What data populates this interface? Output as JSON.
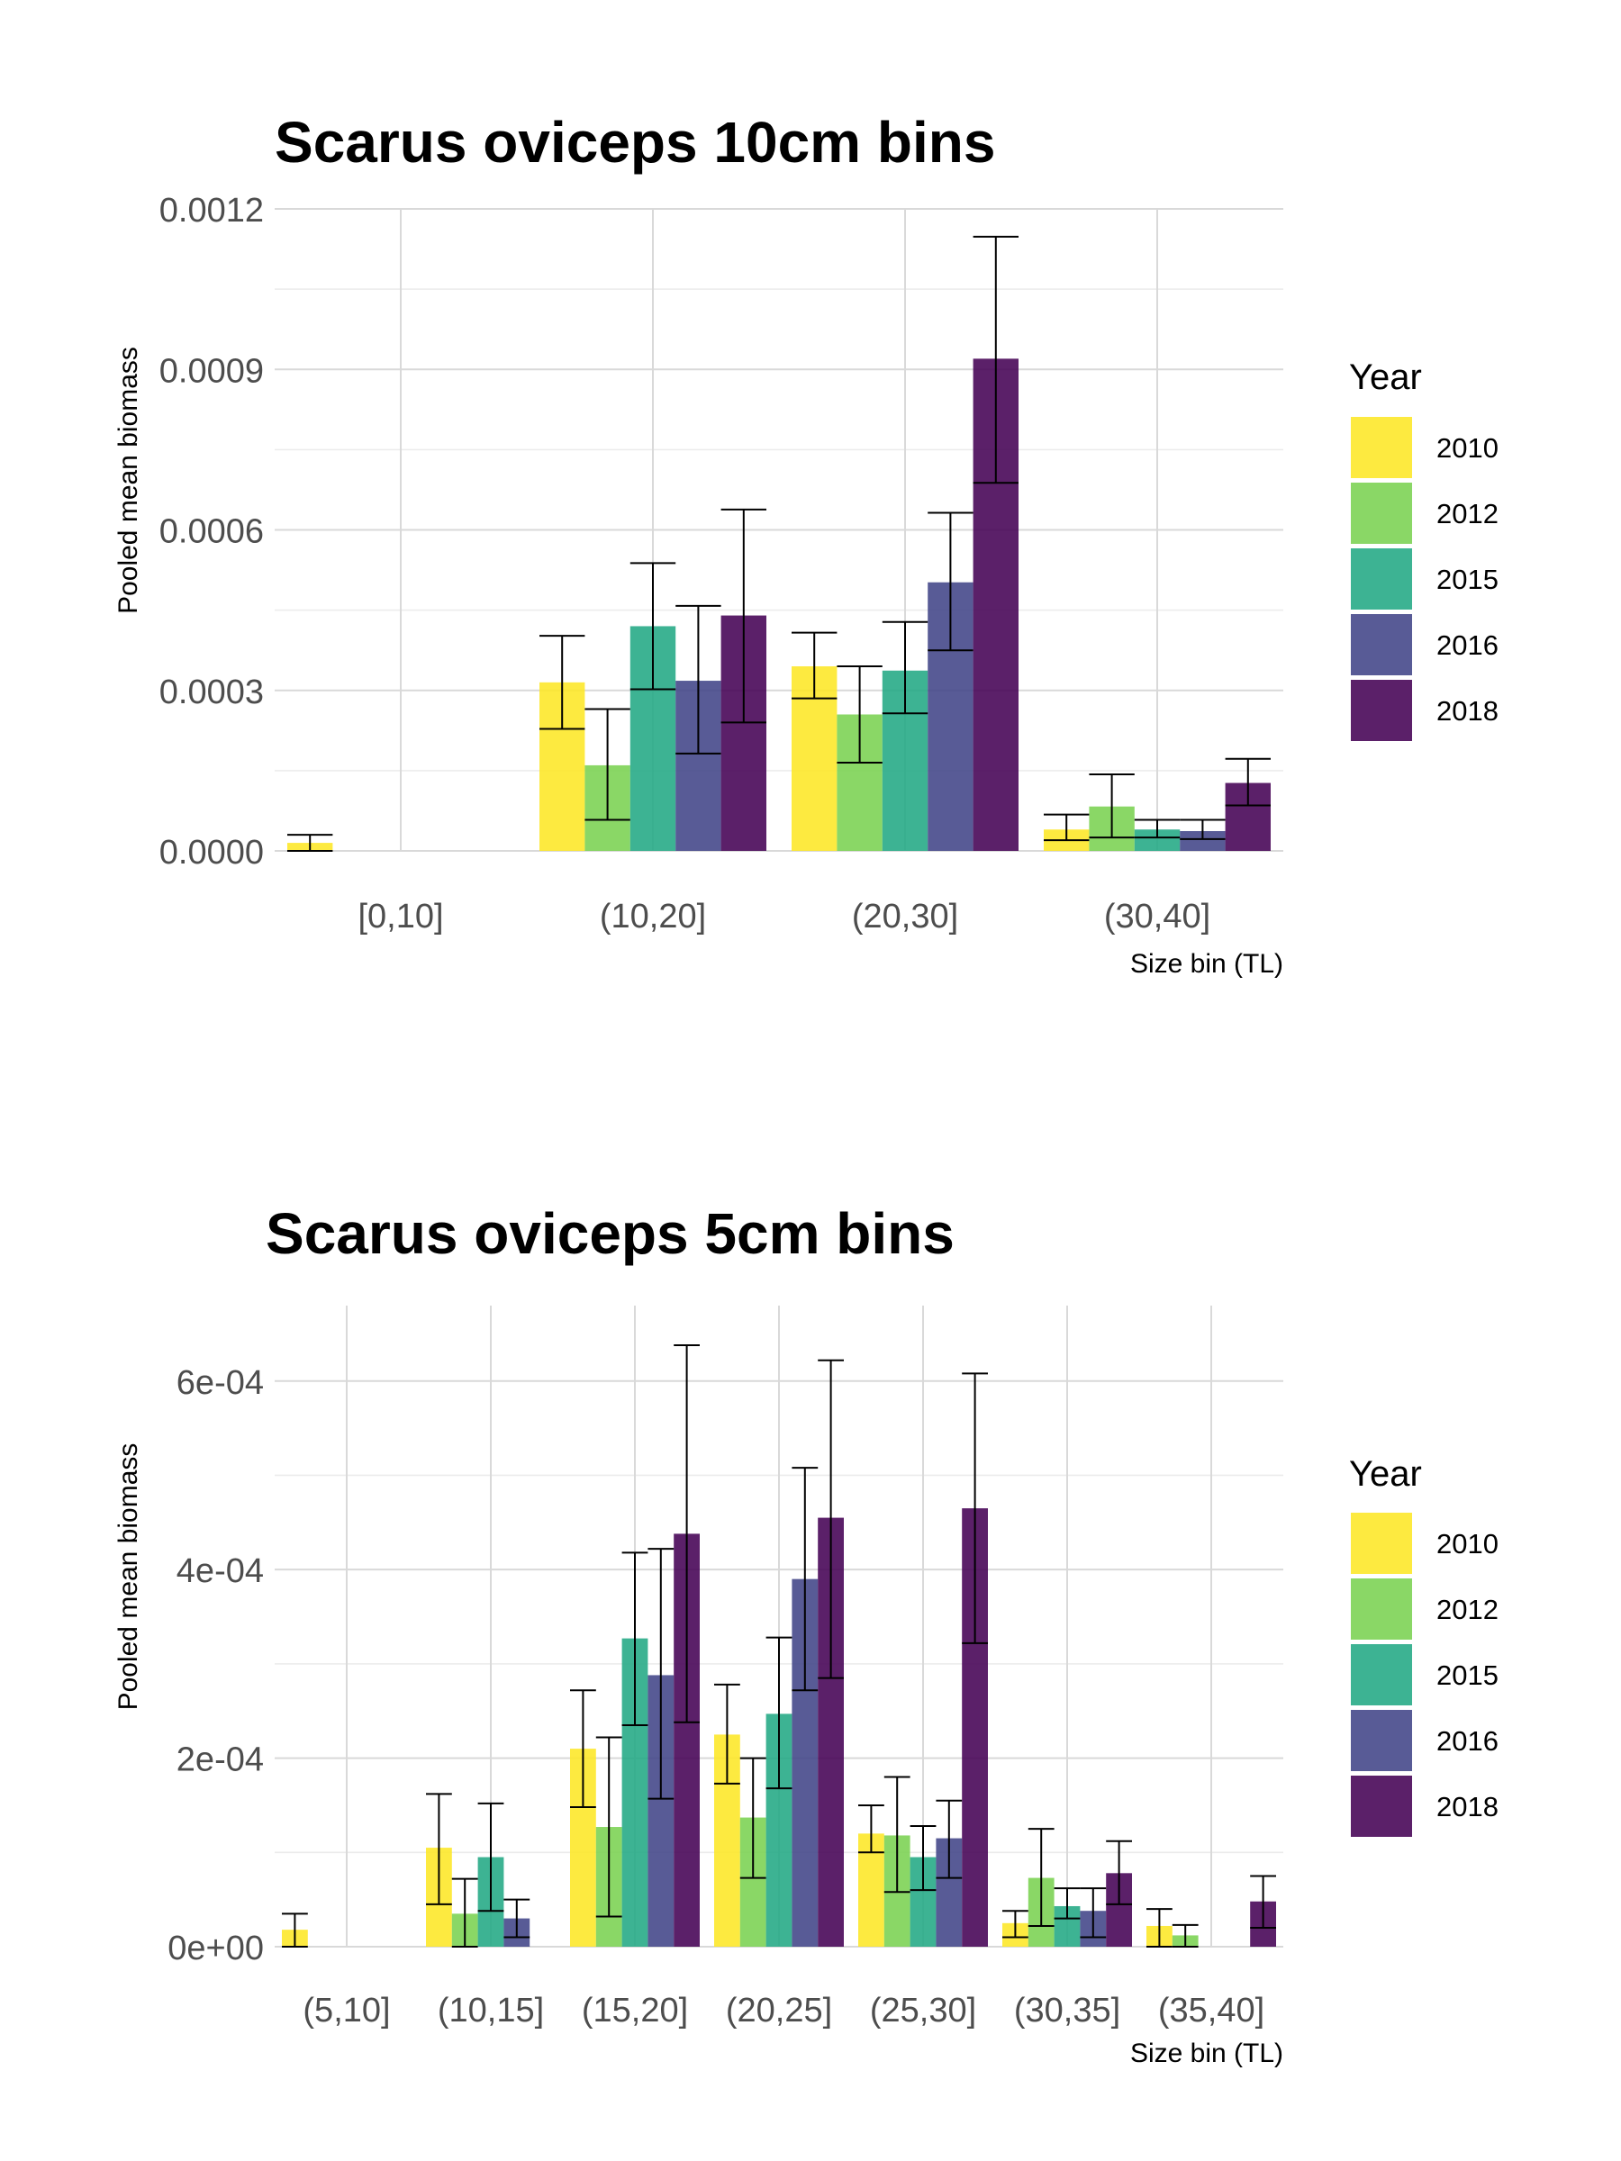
{
  "chart_data": [
    {
      "type": "bar",
      "title": "Scarus oviceps 10cm bins",
      "xlabel": "Size bin (TL)",
      "ylabel": "Pooled mean biomass",
      "ylim": [
        0,
        0.0012
      ],
      "yticks": [
        "0.0000",
        "0.0003",
        "0.0006",
        "0.0009",
        "0.0012"
      ],
      "ytick_values": [
        0,
        0.0003,
        0.0006,
        0.0009,
        0.0012
      ],
      "categories": [
        "[0,10]",
        "(10,20]",
        "(20,30]",
        "(30,40]"
      ],
      "series": [
        {
          "name": "2010",
          "color": "#FDE725",
          "values": [
            1.5e-05,
            0.000315,
            0.000345,
            4e-05
          ],
          "error_low": [
            0.0,
            0.000228,
            0.000285,
            2e-05
          ],
          "error_high": [
            3e-05,
            0.000402,
            0.000408,
            6.8e-05
          ]
        },
        {
          "name": "2012",
          "color": "#7AD151",
          "values": [
            null,
            0.00016,
            0.000255,
            8.3e-05
          ],
          "error_low": [
            null,
            5.8e-05,
            0.000165,
            2.5e-05
          ],
          "error_high": [
            null,
            0.000265,
            0.000345,
            0.000143
          ]
        },
        {
          "name": "2015",
          "color": "#22A884",
          "values": [
            null,
            0.00042,
            0.000337,
            4e-05
          ],
          "error_low": [
            null,
            0.000302,
            0.000257,
            2.5e-05
          ],
          "error_high": [
            null,
            0.000538,
            0.000428,
            5.8e-05
          ]
        },
        {
          "name": "2016",
          "color": "#414487",
          "values": [
            null,
            0.000318,
            0.000502,
            3.7e-05
          ],
          "error_low": [
            null,
            0.000182,
            0.000375,
            2.2e-05
          ],
          "error_high": [
            null,
            0.000458,
            0.000632,
            5.8e-05
          ]
        },
        {
          "name": "2018",
          "color": "#440154",
          "values": [
            null,
            0.00044,
            0.00092,
            0.000127
          ],
          "error_low": [
            null,
            0.00024,
            0.000688,
            8.5e-05
          ],
          "error_high": [
            null,
            0.000638,
            0.001148,
            0.000172
          ]
        }
      ],
      "legend": {
        "title": "Year",
        "position": "right"
      },
      "grid": true
    },
    {
      "type": "bar",
      "title": "Scarus oviceps 5cm bins",
      "xlabel": "Size bin (TL)",
      "ylabel": "Pooled mean biomass",
      "ylim": [
        0,
        0.00068
      ],
      "yticks": [
        "0e+00",
        "2e-04",
        "4e-04",
        "6e-04"
      ],
      "ytick_values": [
        0,
        0.0002,
        0.0004,
        0.0006
      ],
      "categories": [
        "(5,10]",
        "(10,15]",
        "(15,20]",
        "(20,25]",
        "(25,30]",
        "(30,35]",
        "(35,40]"
      ],
      "series": [
        {
          "name": "2010",
          "color": "#FDE725",
          "values": [
            1.8e-05,
            0.000105,
            0.00021,
            0.000225,
            0.00012,
            2.5e-05,
            2.2e-05
          ],
          "error_low": [
            0.0,
            4.5e-05,
            0.000148,
            0.000173,
            0.0001,
            1e-05,
            0.0
          ],
          "error_high": [
            3.5e-05,
            0.000162,
            0.000272,
            0.000278,
            0.00015,
            3.8e-05,
            4e-05
          ]
        },
        {
          "name": "2012",
          "color": "#7AD151",
          "values": [
            null,
            3.5e-05,
            0.000127,
            0.000137,
            0.000118,
            7.3e-05,
            1.2e-05
          ],
          "error_low": [
            null,
            0.0,
            3.2e-05,
            7.3e-05,
            5.8e-05,
            2.2e-05,
            0.0
          ],
          "error_high": [
            null,
            7.2e-05,
            0.000222,
            0.0002,
            0.00018,
            0.000125,
            2.3e-05
          ]
        },
        {
          "name": "2015",
          "color": "#22A884",
          "values": [
            null,
            9.5e-05,
            0.000327,
            0.000247,
            9.5e-05,
            4.3e-05,
            null
          ],
          "error_low": [
            null,
            3.8e-05,
            0.000235,
            0.000168,
            6e-05,
            3e-05,
            null
          ],
          "error_high": [
            null,
            0.000152,
            0.000418,
            0.000328,
            0.000128,
            6.2e-05,
            null
          ]
        },
        {
          "name": "2016",
          "color": "#414487",
          "values": [
            null,
            3e-05,
            0.000288,
            0.00039,
            0.000115,
            3.8e-05,
            null
          ],
          "error_low": [
            null,
            1e-05,
            0.000157,
            0.000272,
            7.3e-05,
            1e-05,
            null
          ],
          "error_high": [
            null,
            5e-05,
            0.000422,
            0.000508,
            0.000155,
            6.2e-05,
            null
          ]
        },
        {
          "name": "2018",
          "color": "#440154",
          "values": [
            null,
            null,
            0.000438,
            0.000455,
            0.000465,
            7.8e-05,
            4.8e-05
          ],
          "error_low": [
            null,
            null,
            0.000238,
            0.000285,
            0.000322,
            4.5e-05,
            2e-05
          ],
          "error_high": [
            null,
            null,
            0.000638,
            0.000622,
            0.000608,
            0.000112,
            7.5e-05
          ]
        }
      ],
      "legend": {
        "title": "Year",
        "position": "right"
      },
      "grid": true
    }
  ]
}
